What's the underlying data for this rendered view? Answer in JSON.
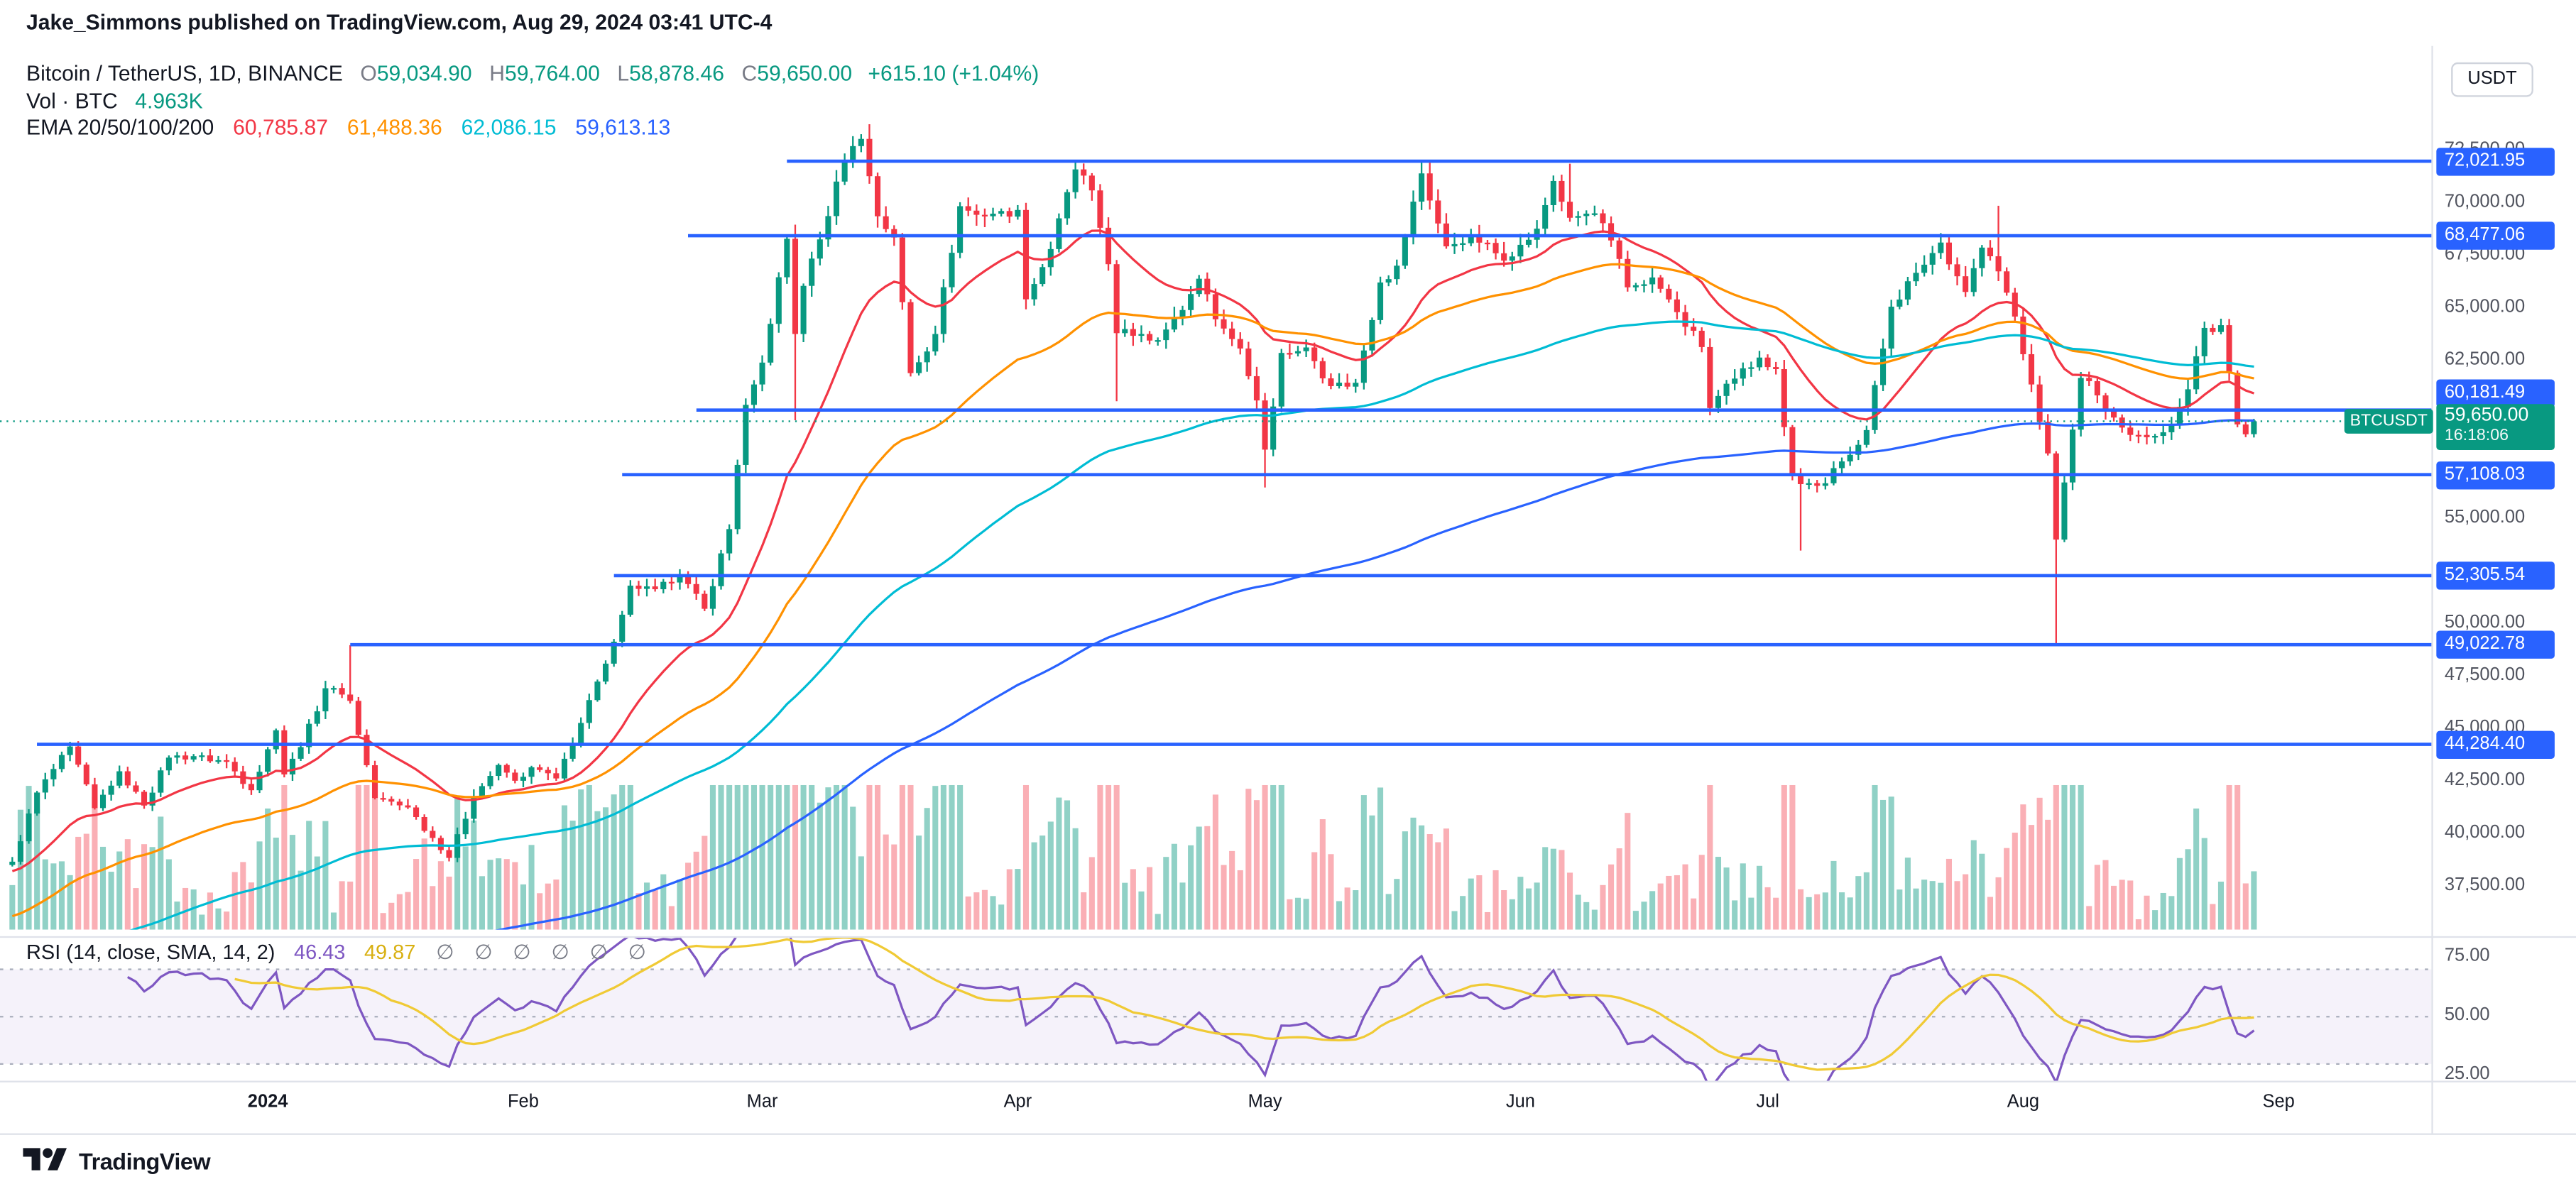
{
  "header": {
    "published_line": "Jake_Simmons published on TradingView.com, Aug 29, 2024 03:41 UTC-4"
  },
  "legend": {
    "symbol_line": {
      "title": "Bitcoin / TetherUS, 1D, BINANCE",
      "o_label": "O",
      "o": "59,034.90",
      "h_label": "H",
      "h": "59,764.00",
      "l_label": "L",
      "l": "58,878.46",
      "c_label": "C",
      "c": "59,650.00",
      "change": "+615.10 (+1.04%)"
    },
    "volume_line": {
      "label": "Vol · BTC",
      "value": "4.963K"
    },
    "ema_line": {
      "label": "EMA 20/50/100/200",
      "values": [
        "60,785.87",
        "61,488.36",
        "62,086.15",
        "59,613.13"
      ]
    }
  },
  "rsi_legend": {
    "label": "RSI (14, close, SMA, 14, 2)",
    "rsi_value": "46.43",
    "ma_value": "49.87",
    "empty_slots": [
      "∅",
      "∅",
      "∅",
      "∅",
      "∅",
      "∅"
    ]
  },
  "chart_label": {
    "symbol_tag": "BTCUSDT"
  },
  "price_axis": {
    "currency_label": "USDT",
    "ticks": [
      {
        "text": "72,500.00",
        "price": 72500
      },
      {
        "text": "70,000.00",
        "price": 70000
      },
      {
        "text": "67,500.00",
        "price": 67500
      },
      {
        "text": "65,000.00",
        "price": 65000
      },
      {
        "text": "62,500.00",
        "price": 62500
      },
      {
        "text": "55,000.00",
        "price": 55000
      },
      {
        "text": "50,000.00",
        "price": 50000
      },
      {
        "text": "47,500.00",
        "price": 47500
      },
      {
        "text": "45,000.00",
        "price": 45000
      },
      {
        "text": "42,500.00",
        "price": 42500
      },
      {
        "text": "40,000.00",
        "price": 40000
      },
      {
        "text": "37,500.00",
        "price": 37500
      }
    ],
    "level_labels": [
      {
        "text": "72,021.95",
        "price": 72021.95
      },
      {
        "text": "68,477.06",
        "price": 68477.06
      },
      {
        "text": "60,181.49",
        "price": 60181.49,
        "nudge": -10
      },
      {
        "text": "57,108.03",
        "price": 57108.03
      },
      {
        "text": "52,305.54",
        "price": 52305.54
      },
      {
        "text": "49,022.78",
        "price": 49022.78
      },
      {
        "text": "44,284.40",
        "price": 44284.4
      }
    ],
    "current": {
      "price_text": "59,650.00",
      "countdown": "16:18:06",
      "price": 59650
    }
  },
  "rsi_axis": {
    "ticks": [
      {
        "text": "75.00",
        "value": 75
      },
      {
        "text": "50.00",
        "value": 50
      },
      {
        "text": "25.00",
        "value": 25
      }
    ]
  },
  "time_axis": {
    "labels": [
      {
        "text": "2024",
        "date": "2024-01-01",
        "emph": true
      },
      {
        "text": "Feb",
        "date": "2024-02-01"
      },
      {
        "text": "Mar",
        "date": "2024-03-01"
      },
      {
        "text": "Apr",
        "date": "2024-04-01"
      },
      {
        "text": "May",
        "date": "2024-05-01"
      },
      {
        "text": "Jun",
        "date": "2024-06-01"
      },
      {
        "text": "Jul",
        "date": "2024-07-01"
      },
      {
        "text": "Aug",
        "date": "2024-08-01"
      },
      {
        "text": "Sep",
        "date": "2024-09-01"
      }
    ]
  },
  "footer": {
    "brand": "TradingView"
  },
  "colors": {
    "up": "#089981",
    "down": "#f23645",
    "volume_up": "rgba(8,153,129,0.45)",
    "volume_down": "rgba(242,54,69,0.40)",
    "ema20": "#f23645",
    "ema50": "#ff9100",
    "ema100": "#00bcd4",
    "ema200": "#2962ff",
    "level": "#2962ff",
    "current": "#089981",
    "rsi": "#7e57c2",
    "rsi_ma": "#f0ca35",
    "rsi_band_fill": "rgba(126,87,194,0.08)",
    "rsi_band_line": "#aab",
    "separator": "#dfe2ea",
    "axis_text": "#50535e",
    "text": "#131722"
  },
  "chart_data": {
    "type": "candlestick",
    "symbol": "BTCUSDT",
    "exchange": "BINANCE",
    "interval": "1D",
    "quote_currency": "USDT",
    "start_date": "2023-12-01",
    "end_date": "2024-08-29",
    "price_axis_visible_range": [
      35500,
      77500
    ],
    "last_candle": {
      "open": 59034.9,
      "high": 59764.0,
      "low": 58878.46,
      "close": 59650.0,
      "change": 615.1,
      "change_pct": 1.04
    },
    "last_volume_btc": "4.963K",
    "ema_periods": [
      20,
      50,
      100,
      200
    ],
    "ema_last_values": [
      60785.87,
      61488.36,
      62086.15,
      59613.13
    ],
    "ema_seeds": {
      "20": 38200,
      "50": 36000,
      "100": 33000,
      "200": 29500
    },
    "rsi": {
      "period": 14,
      "ma_period": 14,
      "last_value": 46.43,
      "ma_last_value": 49.87,
      "band": [
        30,
        70
      ]
    },
    "current_price": 59650,
    "horizontal_levels": [
      {
        "price": 72021.95,
        "start": "2024-03-04"
      },
      {
        "price": 68477.06,
        "start": "2024-02-21"
      },
      {
        "price": 60181.49,
        "start": "2024-02-22"
      },
      {
        "price": 57108.03,
        "start": "2024-02-13"
      },
      {
        "price": 52305.54,
        "start": "2024-02-12"
      },
      {
        "price": 49022.78,
        "start": "2024-01-11"
      },
      {
        "price": 44284.4,
        "start": "2023-12-04"
      }
    ],
    "close_anchors": [
      [
        "2023-12-01",
        38700
      ],
      [
        "2023-12-04",
        41990
      ],
      [
        "2023-12-08",
        44180
      ],
      [
        "2023-12-11",
        41250
      ],
      [
        "2023-12-14",
        43000
      ],
      [
        "2023-12-17",
        41370
      ],
      [
        "2023-12-20",
        43650
      ],
      [
        "2023-12-23",
        43720
      ],
      [
        "2023-12-27",
        43450
      ],
      [
        "2023-12-30",
        42100
      ],
      [
        "2024-01-02",
        44950
      ],
      [
        "2024-01-03",
        42850
      ],
      [
        "2024-01-05",
        44150
      ],
      [
        "2024-01-08",
        46950
      ],
      [
        "2024-01-10",
        46650
      ],
      [
        "2024-01-11",
        46350
      ],
      [
        "2024-01-14",
        41730
      ],
      [
        "2024-01-18",
        41280
      ],
      [
        "2024-01-23",
        38880
      ],
      [
        "2024-01-26",
        41820
      ],
      [
        "2024-01-29",
        43300
      ],
      [
        "2024-01-31",
        42550
      ],
      [
        "2024-02-02",
        43190
      ],
      [
        "2024-02-05",
        42660
      ],
      [
        "2024-02-08",
        45300
      ],
      [
        "2024-02-11",
        48120
      ],
      [
        "2024-02-14",
        51830
      ],
      [
        "2024-02-17",
        51660
      ],
      [
        "2024-02-20",
        52250
      ],
      [
        "2024-02-23",
        50730
      ],
      [
        "2024-02-26",
        54520
      ],
      [
        "2024-02-28",
        60430
      ],
      [
        "2024-02-29",
        61400
      ],
      [
        "2024-03-01",
        62440
      ],
      [
        "2024-03-04",
        68330
      ],
      [
        "2024-03-05",
        63800
      ],
      [
        "2024-03-06",
        66090
      ],
      [
        "2024-03-08",
        68300
      ],
      [
        "2024-03-11",
        72080
      ],
      [
        "2024-03-13",
        73080
      ],
      [
        "2024-03-15",
        69400
      ],
      [
        "2024-03-17",
        68390
      ],
      [
        "2024-03-19",
        61940
      ],
      [
        "2024-03-22",
        63800
      ],
      [
        "2024-03-25",
        69880
      ],
      [
        "2024-03-27",
        69470
      ],
      [
        "2024-03-30",
        69650
      ],
      [
        "2024-04-01",
        69700
      ],
      [
        "2024-04-02",
        65450
      ],
      [
        "2024-04-05",
        67840
      ],
      [
        "2024-04-08",
        71630
      ],
      [
        "2024-04-10",
        70630
      ],
      [
        "2024-04-12",
        67120
      ],
      [
        "2024-04-13",
        63840
      ],
      [
        "2024-04-16",
        63800
      ],
      [
        "2024-04-18",
        63510
      ],
      [
        "2024-04-21",
        64940
      ],
      [
        "2024-04-23",
        66430
      ],
      [
        "2024-04-25",
        64500
      ],
      [
        "2024-04-28",
        63110
      ],
      [
        "2024-04-30",
        60640
      ],
      [
        "2024-05-01",
        58300
      ],
      [
        "2024-05-03",
        62900
      ],
      [
        "2024-05-06",
        63160
      ],
      [
        "2024-05-09",
        61320
      ],
      [
        "2024-05-12",
        61480
      ],
      [
        "2024-05-15",
        66250
      ],
      [
        "2024-05-17",
        67050
      ],
      [
        "2024-05-20",
        71440
      ],
      [
        "2024-05-21",
        70150
      ],
      [
        "2024-05-23",
        67970
      ],
      [
        "2024-05-26",
        68530
      ],
      [
        "2024-05-29",
        67640
      ],
      [
        "2024-05-31",
        67490
      ],
      [
        "2024-06-03",
        68810
      ],
      [
        "2024-06-05",
        71080
      ],
      [
        "2024-06-07",
        69330
      ],
      [
        "2024-06-10",
        69540
      ],
      [
        "2024-06-12",
        68250
      ],
      [
        "2024-06-14",
        66020
      ],
      [
        "2024-06-17",
        66490
      ],
      [
        "2024-06-20",
        64840
      ],
      [
        "2024-06-23",
        63180
      ],
      [
        "2024-06-24",
        60280
      ],
      [
        "2024-06-27",
        61680
      ],
      [
        "2024-06-30",
        62680
      ],
      [
        "2024-07-02",
        62130
      ],
      [
        "2024-07-04",
        57040
      ],
      [
        "2024-07-05",
        56660
      ],
      [
        "2024-07-08",
        56700
      ],
      [
        "2024-07-10",
        57740
      ],
      [
        "2024-07-13",
        59230
      ],
      [
        "2024-07-16",
        65100
      ],
      [
        "2024-07-19",
        66710
      ],
      [
        "2024-07-22",
        68150
      ],
      [
        "2024-07-25",
        65800
      ],
      [
        "2024-07-27",
        67910
      ],
      [
        "2024-07-29",
        66780
      ],
      [
        "2024-07-31",
        64630
      ],
      [
        "2024-08-02",
        61400
      ],
      [
        "2024-08-04",
        58120
      ],
      [
        "2024-08-05",
        54020
      ],
      [
        "2024-08-08",
        61710
      ],
      [
        "2024-08-10",
        60880
      ],
      [
        "2024-08-13",
        59350
      ],
      [
        "2024-08-16",
        58890
      ],
      [
        "2024-08-19",
        59490
      ],
      [
        "2024-08-21",
        61170
      ],
      [
        "2024-08-23",
        64090
      ],
      [
        "2024-08-25",
        64220
      ],
      [
        "2024-08-27",
        59500
      ],
      [
        "2024-08-28",
        59030
      ],
      [
        "2024-08-29",
        59650
      ]
    ],
    "wick_overrides": [
      {
        "date": "2024-01-11",
        "high": 49000
      },
      {
        "date": "2024-03-05",
        "high": 69000,
        "low": 59700
      },
      {
        "date": "2024-03-14",
        "high": 73777
      },
      {
        "date": "2024-04-13",
        "low": 60600
      },
      {
        "date": "2024-05-01",
        "low": 56500
      },
      {
        "date": "2024-05-21",
        "high": 71950
      },
      {
        "date": "2024-06-07",
        "high": 71900
      },
      {
        "date": "2024-07-05",
        "low": 53500
      },
      {
        "date": "2024-07-29",
        "high": 69900
      },
      {
        "date": "2024-08-05",
        "low": 49050
      },
      {
        "date": "2024-08-29",
        "open": 59034.9,
        "high": 59764,
        "low": 58878.46,
        "close": 59650
      }
    ]
  }
}
